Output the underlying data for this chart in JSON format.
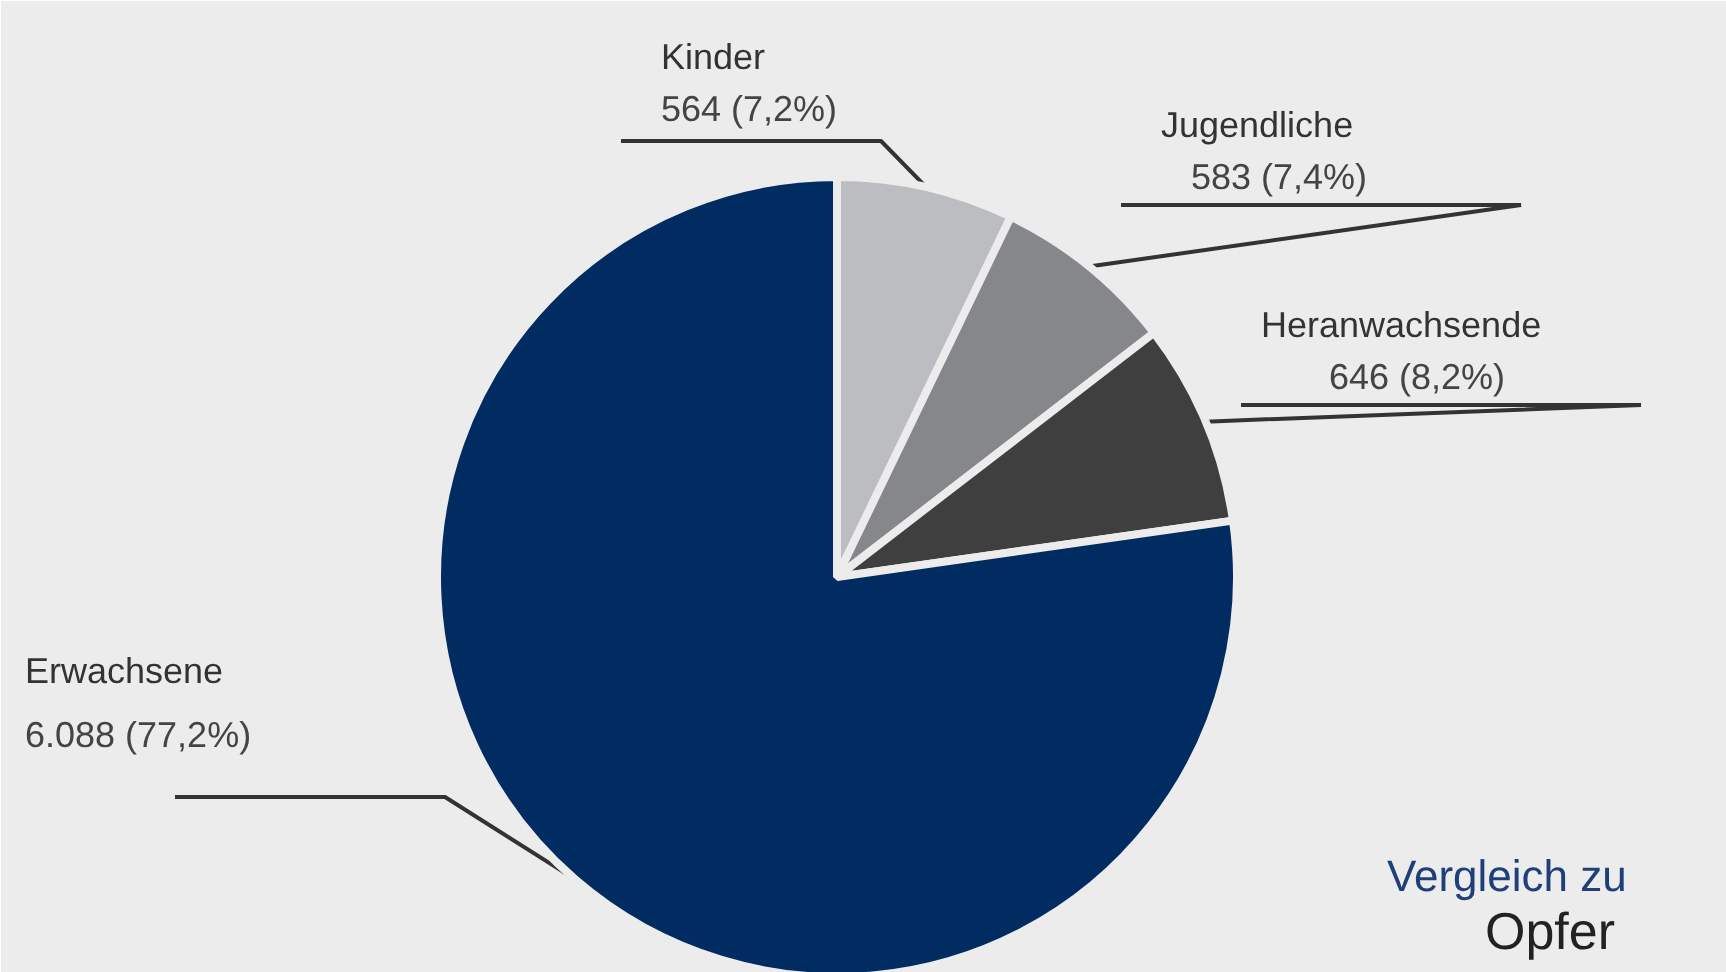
{
  "chart_data": {
    "type": "pie",
    "categories": [
      "Kinder",
      "Jugendliche",
      "Heranwachsende",
      "Erwachsene"
    ],
    "values": [
      564,
      583,
      646,
      6088
    ],
    "colors": [
      "#bcbdc0",
      "#86878a",
      "#3f3f3f",
      "#002c61"
    ],
    "value_labels": [
      "564 (7,2%)",
      "583 (7,4%)",
      "646 (8,2%)",
      "6.088 (77,2%)"
    ],
    "annotations": [
      "Vergleich zu",
      "Opfer"
    ]
  }
}
